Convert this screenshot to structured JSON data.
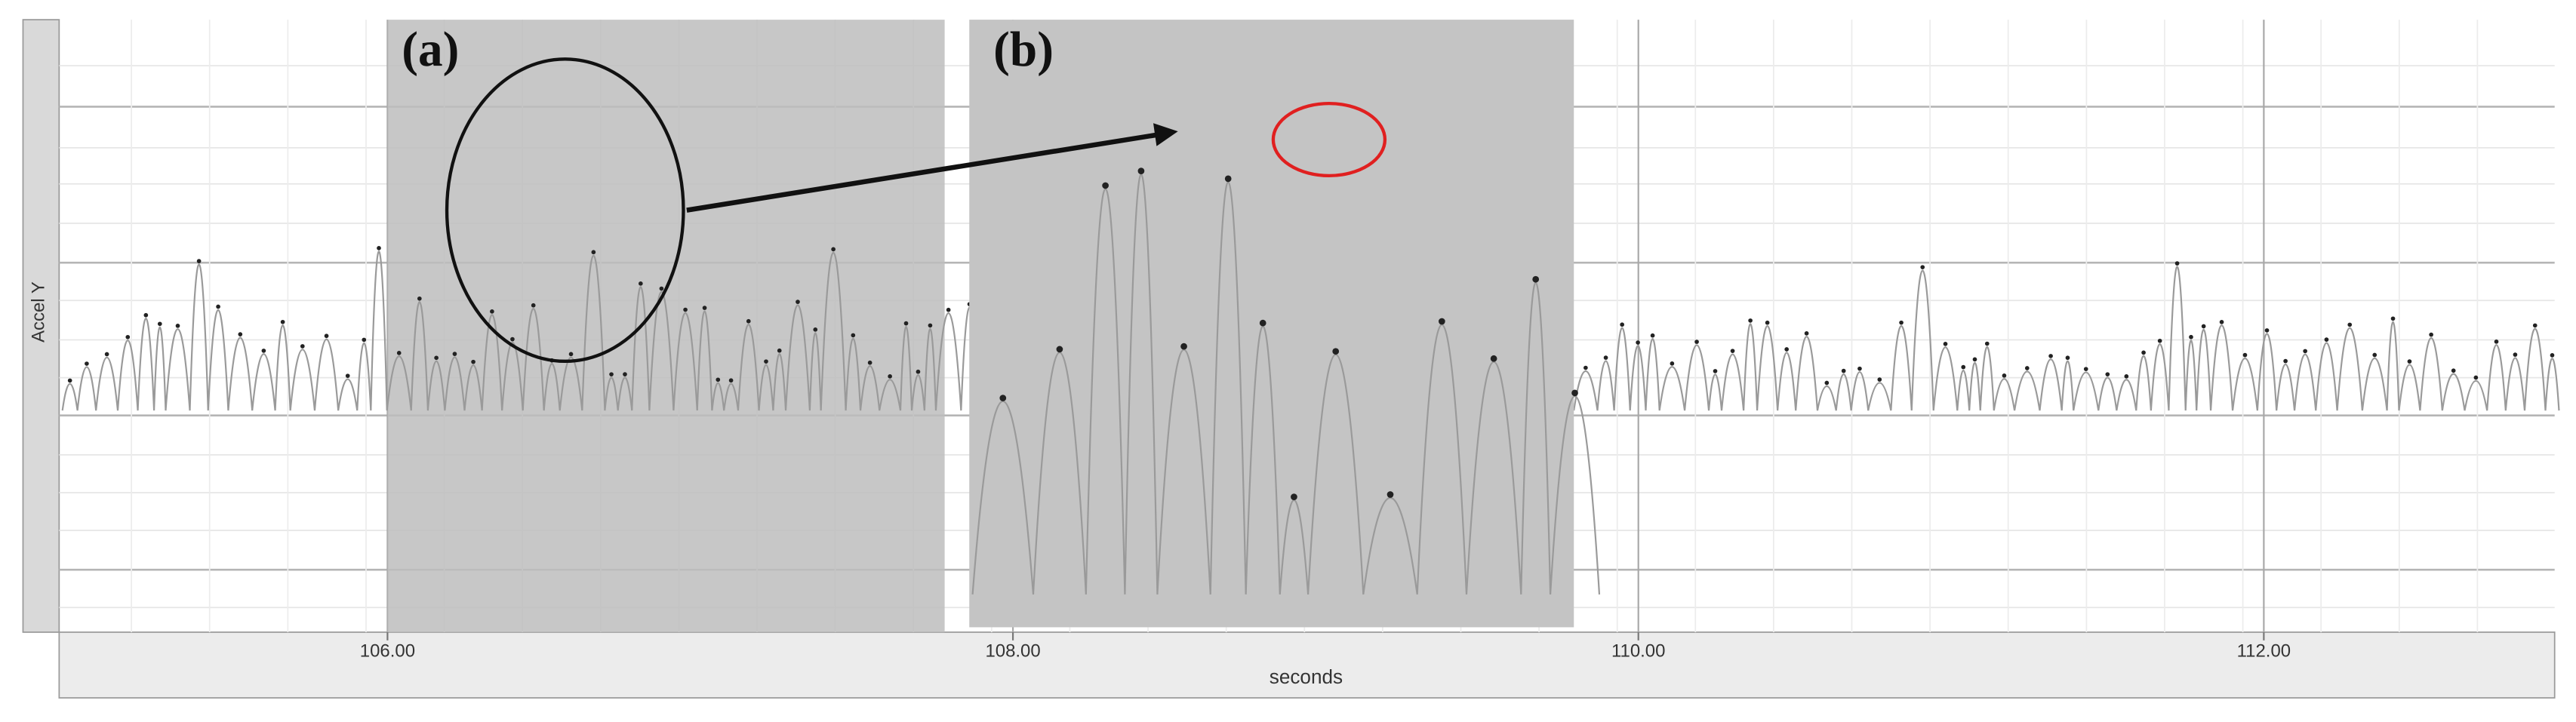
{
  "chart_data": {
    "type": "line",
    "xlabel": "seconds",
    "ylabel": "Accel Y",
    "annotations": [
      "(a)",
      "(b)"
    ],
    "xlim": [
      104.95,
      112.93
    ],
    "xticks": [
      {
        "value": 106,
        "label": "106.00"
      },
      {
        "value": 108,
        "label": "108.00"
      },
      {
        "value": 110,
        "label": "110.00"
      },
      {
        "value": 112,
        "label": "112.00"
      }
    ],
    "grid": true
  }
}
